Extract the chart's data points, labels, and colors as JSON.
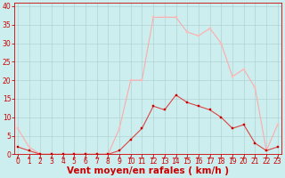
{
  "hours": [
    0,
    1,
    2,
    3,
    4,
    5,
    6,
    7,
    8,
    9,
    10,
    11,
    12,
    13,
    14,
    15,
    16,
    17,
    18,
    19,
    20,
    21,
    22,
    23
  ],
  "wind_avg": [
    2,
    1,
    0,
    0,
    0,
    0,
    0,
    0,
    0,
    1,
    4,
    7,
    13,
    12,
    16,
    14,
    13,
    12,
    10,
    7,
    8,
    3,
    1,
    2
  ],
  "wind_gust": [
    7,
    2,
    0,
    0,
    0,
    0,
    0,
    0,
    0,
    7,
    20,
    20,
    37,
    37,
    37,
    33,
    32,
    34,
    30,
    21,
    23,
    18,
    1,
    8
  ],
  "line_avg_color": "#dd4444",
  "line_gust_color": "#ffaaaa",
  "marker_avg_color": "#cc0000",
  "marker_gust_color": "#ffbbbb",
  "bg_color": "#cceeee",
  "grid_color": "#aacccc",
  "axis_color": "#cc0000",
  "xlabel": "Vent moyen/en rafales ( km/h )",
  "xlabel_color": "#cc0000",
  "yticks": [
    0,
    5,
    10,
    15,
    20,
    25,
    30,
    35,
    40
  ],
  "xticks": [
    0,
    1,
    2,
    3,
    4,
    5,
    6,
    7,
    8,
    9,
    10,
    11,
    12,
    13,
    14,
    15,
    16,
    17,
    18,
    19,
    20,
    21,
    22,
    23
  ],
  "ylim": [
    0,
    41
  ],
  "xlim": [
    -0.3,
    23.3
  ],
  "tick_fontsize": 5.5,
  "xlabel_fontsize": 7.5
}
